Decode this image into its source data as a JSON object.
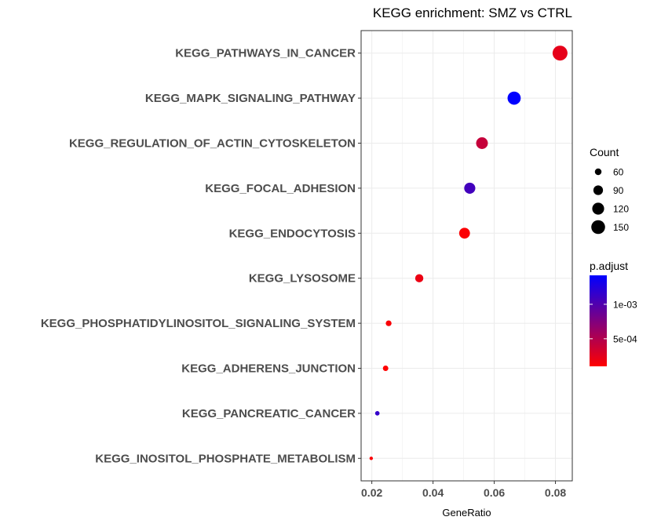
{
  "chart_data": {
    "type": "scatter",
    "title": "KEGG enrichment: SMZ vs CTRL",
    "xlabel": "GeneRatio",
    "xlim": [
      0.0165,
      0.0855
    ],
    "xticks": [
      "0.02",
      "0.04",
      "0.06",
      "0.08"
    ],
    "xtick_values": [
      0.02,
      0.04,
      0.06,
      0.08
    ],
    "grid": true,
    "points": [
      {
        "category": "KEGG_PATHWAYS_IN_CANCER",
        "gene_ratio": 0.0815,
        "count": 170,
        "p_adjust": 0.00023
      },
      {
        "category": "KEGG_MAPK_SIGNALING_PATHWAY",
        "gene_ratio": 0.0665,
        "count": 140,
        "p_adjust": 0.00142
      },
      {
        "category": "KEGG_REGULATION_OF_ACTIN_CYTOSKELETON",
        "gene_ratio": 0.056,
        "count": 118,
        "p_adjust": 0.0004
      },
      {
        "category": "KEGG_FOCAL_ADHESION",
        "gene_ratio": 0.052,
        "count": 109,
        "p_adjust": 0.00108
      },
      {
        "category": "KEGG_ENDOCYTOSIS",
        "gene_ratio": 0.0503,
        "count": 105,
        "p_adjust": 0.00012
      },
      {
        "category": "KEGG_LYSOSOME",
        "gene_ratio": 0.0355,
        "count": 74,
        "p_adjust": 0.0002
      },
      {
        "category": "KEGG_PHOSPHATIDYLINOSITOL_SIGNALING_SYSTEM",
        "gene_ratio": 0.0255,
        "count": 53,
        "p_adjust": 0.00013
      },
      {
        "category": "KEGG_ADHERENS_JUNCTION",
        "gene_ratio": 0.0245,
        "count": 51,
        "p_adjust": 0.0001
      },
      {
        "category": "KEGG_PANCREATIC_CANCER",
        "gene_ratio": 0.0218,
        "count": 45,
        "p_adjust": 0.00115
      },
      {
        "category": "KEGG_INOSITOL_PHOSPHATE_METABOLISM",
        "gene_ratio": 0.0198,
        "count": 40,
        "p_adjust": 0.00012
      }
    ],
    "legend_size": {
      "title": "Count",
      "labels": [
        "60",
        "90",
        "120",
        "150"
      ],
      "values": [
        60,
        90,
        120,
        150
      ],
      "placement": "right"
    },
    "legend_color": {
      "title": "p.adjust",
      "labels": [
        "1e-03",
        "5e-04"
      ],
      "values": [
        0.001,
        0.0005
      ],
      "range": [
        0.0001,
        0.00142
      ],
      "low_color": "#ff0000",
      "high_color": "#0000ff",
      "placement": "right"
    },
    "colors": {
      "panel_background": "#ffffff",
      "grid": "#ebebeb",
      "border": "#333333",
      "tick_text": "#4d4d4d"
    }
  }
}
